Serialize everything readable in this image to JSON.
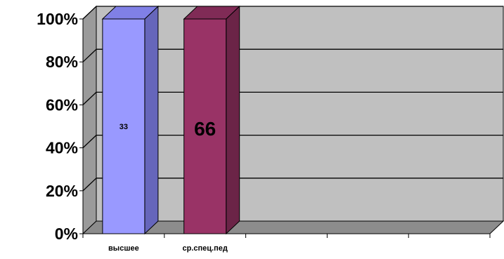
{
  "chart_data": {
    "type": "bar",
    "stacked_percent": true,
    "three_d": true,
    "categories": [
      "высшее",
      "ср.спец.пед",
      "",
      "",
      ""
    ],
    "series": [
      {
        "values": [
          33,
          66,
          null,
          null,
          null
        ]
      }
    ],
    "data_labels": [
      "33",
      "66"
    ],
    "y_ticks": [
      "0%",
      "20%",
      "40%",
      "60%",
      "80%",
      "100%"
    ],
    "ylim": [
      0,
      100
    ],
    "grid": true,
    "legend": "none",
    "colors": {
      "wall": "#c0c0c0",
      "side_wall": "#9a9a9a",
      "floor": "#8c8c8c",
      "gridline": "#000000",
      "bar1_front": "#9999ff",
      "bar1_side": "#6666bb",
      "bar1_top": "#8080e6",
      "bar2_front": "#993366",
      "bar2_side": "#6b2447",
      "bar2_top": "#802b56"
    }
  }
}
